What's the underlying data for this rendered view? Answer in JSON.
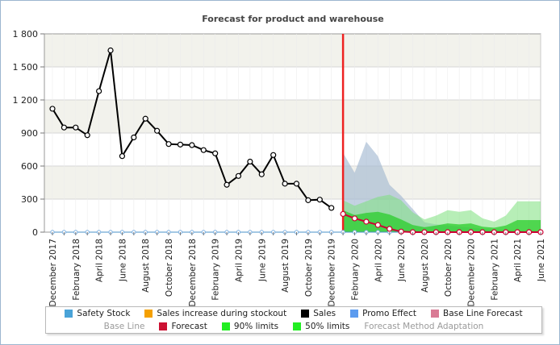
{
  "chart_data": {
    "type": "line",
    "title": "Forecast for product and warehouse",
    "xlabel": "",
    "ylabel": "",
    "ylim": [
      0,
      1800
    ],
    "yticks": [
      "0",
      "300",
      "600",
      "900",
      "1 200",
      "1 500",
      "1 800"
    ],
    "grid": true,
    "legend_position": "bottom",
    "x_tick_labels": [
      "December 2017",
      "February 2018",
      "April 2018",
      "June 2018",
      "August 2018",
      "October 2018",
      "December 2018",
      "February 2019",
      "April 2019",
      "June 2019",
      "August 2019",
      "October 2019",
      "December 2019",
      "February 2020",
      "April 2020",
      "June 2020",
      "August 2020",
      "October 2020",
      "December 2020",
      "February 2021",
      "April 2021",
      "June 2021"
    ],
    "x_months": [
      "2017-12",
      "2018-01",
      "2018-02",
      "2018-03",
      "2018-04",
      "2018-05",
      "2018-06",
      "2018-07",
      "2018-08",
      "2018-09",
      "2018-10",
      "2018-11",
      "2018-12",
      "2019-01",
      "2019-02",
      "2019-03",
      "2019-04",
      "2019-05",
      "2019-06",
      "2019-07",
      "2019-08",
      "2019-09",
      "2019-10",
      "2019-11",
      "2019-12",
      "2020-01",
      "2020-02",
      "2020-03",
      "2020-04",
      "2020-05",
      "2020-06",
      "2020-07",
      "2020-08",
      "2020-09",
      "2020-10",
      "2020-11",
      "2020-12",
      "2021-01",
      "2021-02",
      "2021-03",
      "2021-04",
      "2021-05",
      "2021-06"
    ],
    "forecast_start": "2020-01",
    "series": [
      {
        "name": "Sales",
        "color": "#000000",
        "values": [
          1120,
          950,
          950,
          880,
          1280,
          1650,
          690,
          860,
          1030,
          920,
          800,
          795,
          790,
          745,
          715,
          430,
          510,
          640,
          525,
          700,
          440,
          440,
          290,
          295,
          220
        ]
      },
      {
        "name": "Forecast",
        "color": "#cc0033",
        "values": [
          165,
          125,
          95,
          65,
          30,
          5,
          0,
          0,
          0,
          0,
          0,
          0,
          0,
          0,
          0,
          0,
          0,
          0
        ]
      },
      {
        "name": "Safety Stock",
        "color": "#4a90c8",
        "values": [
          0,
          0,
          0,
          0,
          0,
          0,
          0,
          0,
          0,
          0,
          0,
          0,
          0,
          0,
          0,
          0,
          0,
          0,
          0,
          0,
          0,
          0,
          0,
          0,
          0,
          0,
          0,
          0,
          0,
          0,
          0,
          0,
          0,
          0,
          0,
          0,
          0,
          0,
          0,
          0,
          0,
          0,
          0
        ]
      },
      {
        "name": "Base Line Forecast",
        "color": "#9db4cf",
        "upper": [
          720,
          540,
          820,
          690,
          430,
          330,
          210,
          90,
          70,
          60,
          50,
          40,
          30,
          20,
          20,
          15,
          10,
          10
        ],
        "lower": [
          0,
          0,
          0,
          0,
          0,
          0,
          0,
          0,
          0,
          0,
          0,
          0,
          0,
          0,
          0,
          0,
          0,
          0
        ]
      },
      {
        "name": "90% limits",
        "color": "#7be07b",
        "upper": [
          290,
          240,
          280,
          320,
          340,
          290,
          180,
          115,
          150,
          200,
          185,
          200,
          125,
          95,
          150,
          280,
          280,
          280
        ],
        "lower": [
          0,
          0,
          0,
          0,
          0,
          0,
          0,
          0,
          0,
          0,
          0,
          0,
          0,
          0,
          0,
          0,
          0,
          0
        ]
      },
      {
        "name": "50% limits",
        "color": "#22cc22",
        "upper": [
          200,
          155,
          175,
          185,
          160,
          115,
          65,
          45,
          60,
          80,
          70,
          80,
          50,
          40,
          60,
          110,
          110,
          110
        ],
        "lower": [
          0,
          0,
          0,
          0,
          0,
          0,
          0,
          0,
          0,
          0,
          0,
          0,
          0,
          0,
          0,
          0,
          0,
          0
        ]
      }
    ]
  },
  "legend": {
    "row1": [
      {
        "label": "Safety Stock",
        "color": "#4aa3d8"
      },
      {
        "label": "Sales increase during stockout",
        "color": "#f5a000"
      },
      {
        "label": "Sales",
        "color": "#000000"
      },
      {
        "label": "Promo Effect",
        "color": "#5b9bef"
      },
      {
        "label": "Base Line Forecast",
        "color": "#d97b95"
      }
    ],
    "row2": [
      {
        "label": "Base Line",
        "color": "",
        "hidden": true
      },
      {
        "label": "Forecast",
        "color": "#cc1133"
      },
      {
        "label": "90% limits",
        "color": "#22ee22"
      },
      {
        "label": "50% limits",
        "color": "#22ee22"
      },
      {
        "label": "Forecast Method Adaptation",
        "color": "",
        "hidden": true
      }
    ]
  },
  "colors": {
    "plot_band_light": "#f2f2ec",
    "plot_band_white": "#ffffff",
    "forecast_divider": "#ee2222",
    "frame_border": "#9cb6cf"
  }
}
